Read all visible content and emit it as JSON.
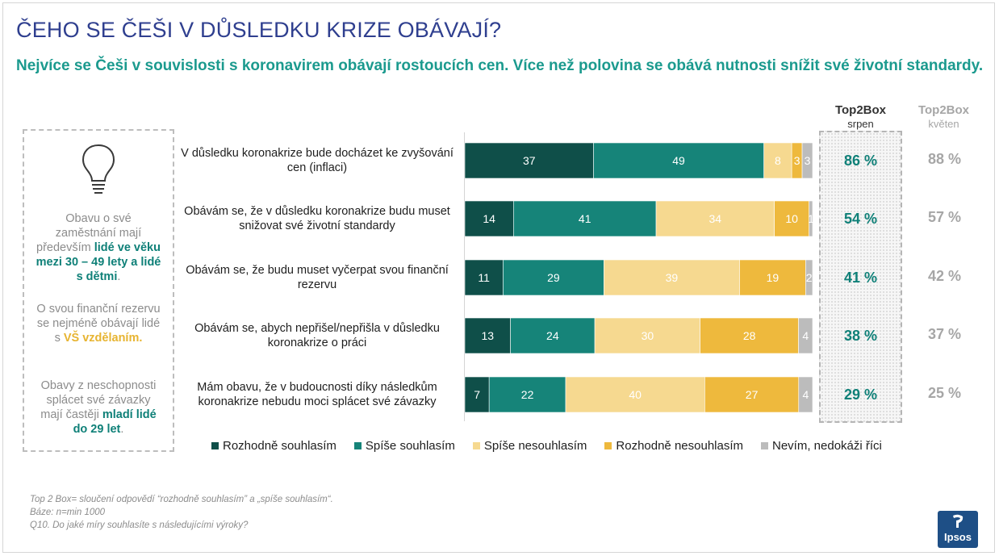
{
  "title": "ČEHO SE ČEŠI V DŮSLEDKU KRIZE OBÁVAJÍ?",
  "subtitle": "Nejvíce se Češi v souvislosti s koronavirem obávají rostoucích cen. Více než polovina se obává nutnosti snížit své životní standardy.",
  "sidebar": {
    "icon": "lightbulb-icon",
    "p1": {
      "pre": "Obavu o své zaměstnání mají především ",
      "bold": "lidé ve věku mezi 30 – 49 lety a lidé s dětmi",
      "post": "."
    },
    "p2": {
      "pre": "O svou finanční rezervu se nejméně obávají lidé s ",
      "bold": "VŠ vzdělaním."
    },
    "p3": {
      "pre": "Obavy z neschopnosti splácet své závazky mají častěji ",
      "bold": "mladí lidé do 29 let",
      "post": "."
    }
  },
  "top2box": {
    "current_label": "Top2Box",
    "current_period": "srpen",
    "previous_label": "Top2Box",
    "previous_period": "květen"
  },
  "chart_data": {
    "type": "bar",
    "orientation": "horizontal",
    "stacked": true,
    "normalized": "100%",
    "categories": [
      "V důsledku koronakrize bude docházet ke zvyšování cen (inflaci)",
      "Obávám se, že v důsledku koronakrize budu muset snižovat své životní standardy",
      "Obávám se, že budu muset vyčerpat svou finanční rezervu",
      "Obávám se, abych nepřišel/nepřišla v důsledku koronakrize o práci",
      "Mám obavu, že v budoucnosti díky následkům koronakrize nebudu moci splácet své závazky"
    ],
    "series": [
      {
        "name": "Rozhodně souhlasím",
        "color": "#0f4f49",
        "values": [
          37,
          14,
          11,
          13,
          7
        ]
      },
      {
        "name": "Spíše souhlasím",
        "color": "#168479",
        "values": [
          49,
          41,
          29,
          24,
          22
        ]
      },
      {
        "name": "Spíše nesouhlasím",
        "color": "#f6d990",
        "values": [
          8,
          34,
          39,
          30,
          40
        ]
      },
      {
        "name": "Rozhodně nesouhlasím",
        "color": "#eeb93d",
        "values": [
          3,
          10,
          19,
          28,
          27
        ]
      },
      {
        "name": "Nevím, nedokáži říci",
        "color": "#bcbcbc",
        "values": [
          3,
          1,
          2,
          4,
          4
        ]
      }
    ],
    "top2box_current": [
      "86 %",
      "54 %",
      "41 %",
      "38 %",
      "29 %"
    ],
    "top2box_previous": [
      "88 %",
      "57 %",
      "42 %",
      "37 %",
      "25 %"
    ],
    "legend_position": "bottom",
    "grid": false
  },
  "footnotes": [
    "Top 2 Box= sloučení odpovědí “rozhodně souhlasím” a „spíše souhlasím“.",
    "Báze: n=min 1000",
    "Q10.  Do jaké míry souhlasíte s následujícími výroky?"
  ],
  "logo": {
    "text": "Ipsos"
  }
}
